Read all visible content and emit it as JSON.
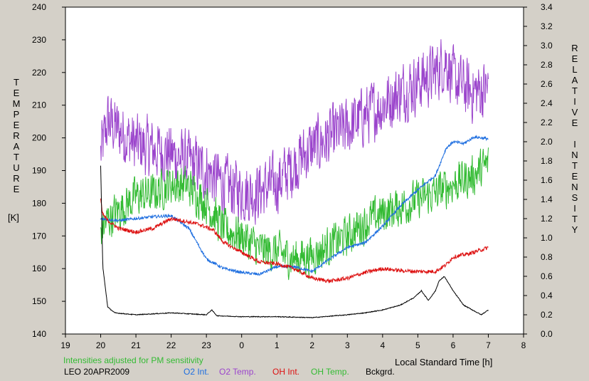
{
  "chart_data": {
    "type": "line",
    "xlabel": "Local Standard Time [h]",
    "x_ticks": [
      "19",
      "20",
      "21",
      "22",
      "23",
      "0",
      "1",
      "2",
      "3",
      "4",
      "5",
      "6",
      "7",
      "8"
    ],
    "xlim": [
      19,
      32
    ],
    "left_axis": {
      "label_letters": [
        "T",
        "E",
        "M",
        "P",
        "E",
        "R",
        "A",
        "T",
        "U",
        "R",
        "E"
      ],
      "unit": "[K]",
      "ylim": [
        140,
        240
      ],
      "ticks": [
        "140",
        "150",
        "160",
        "170",
        "180",
        "190",
        "200",
        "210",
        "220",
        "230",
        "240"
      ]
    },
    "right_axis": {
      "label_letters": [
        "R",
        "E",
        "L",
        "A",
        "T",
        "I",
        "V",
        "E",
        "",
        "I",
        "N",
        "T",
        "E",
        "N",
        "S",
        "I",
        "T",
        "Y"
      ],
      "ylim": [
        0.0,
        3.4
      ],
      "ticks": [
        "0.0",
        "0.2",
        "0.4",
        "0.6",
        "0.8",
        "1.0",
        "1.2",
        "1.4",
        "1.6",
        "1.8",
        "2.0",
        "2.2",
        "2.4",
        "2.6",
        "2.8",
        "3.0",
        "3.2",
        "3.4"
      ]
    },
    "notes": {
      "adjust": "Intensities adjusted for PM sensitivity",
      "station": "LEO 20APR2009"
    },
    "legend": [
      {
        "name": "O2 Int.",
        "color": "#1f6fe0"
      },
      {
        "name": "O2 Temp.",
        "color": "#9b45cc"
      },
      {
        "name": "OH Int.",
        "color": "#dd1111"
      },
      {
        "name": "OH Temp.",
        "color": "#33bb33"
      },
      {
        "name": "Bckgrd.",
        "color": "#000000"
      }
    ],
    "series": [
      {
        "key": "o2temp",
        "axis": "left",
        "color": "#9b45cc",
        "noise": 12,
        "x": [
          20.0,
          20.2,
          21,
          22,
          23,
          23.6,
          24.3,
          25,
          25.5,
          26,
          26.5,
          27,
          27.5,
          28,
          28.5,
          29,
          29.5,
          29.8,
          30,
          30.5,
          31.0
        ],
        "y": [
          195,
          205,
          198,
          195,
          190,
          185,
          183,
          186,
          192,
          197,
          200,
          203,
          207,
          210,
          214,
          217,
          220,
          224,
          218,
          214,
          215
        ]
      },
      {
        "key": "o2int",
        "axis": "right",
        "color": "#1f6fe0",
        "noise": 0.015,
        "x": [
          20.0,
          20.5,
          21,
          21.5,
          22,
          22.5,
          23,
          23.5,
          24,
          24.5,
          25,
          25.5,
          26,
          26.5,
          27,
          27.5,
          28,
          28.5,
          29,
          29.5,
          29.8,
          30,
          30.3,
          30.6,
          31.0
        ],
        "y": [
          1.2,
          1.18,
          1.2,
          1.22,
          1.23,
          1.1,
          0.78,
          0.68,
          0.64,
          0.62,
          0.7,
          0.7,
          0.65,
          0.78,
          0.9,
          0.95,
          1.12,
          1.33,
          1.5,
          1.65,
          1.93,
          2.0,
          1.98,
          2.05,
          2.03
        ]
      },
      {
        "key": "ohint",
        "axis": "right",
        "color": "#dd1111",
        "noise": 0.02,
        "x": [
          20.0,
          20.05,
          20.2,
          20.5,
          21,
          21.5,
          22,
          22.3,
          22.8,
          23.2,
          23.5,
          24,
          24.5,
          25,
          25.5,
          26,
          26.5,
          27,
          27.5,
          28,
          28.5,
          29,
          29.5,
          29.8,
          30,
          30.5,
          31.0
        ],
        "y": [
          1.4,
          1.25,
          1.18,
          1.1,
          1.06,
          1.1,
          1.2,
          1.18,
          1.14,
          1.08,
          0.95,
          0.85,
          0.75,
          0.73,
          0.68,
          0.58,
          0.55,
          0.58,
          0.64,
          0.68,
          0.66,
          0.65,
          0.65,
          0.72,
          0.8,
          0.84,
          0.9
        ]
      },
      {
        "key": "ohtemp",
        "axis": "left",
        "color": "#33bb33",
        "noise": 8,
        "x": [
          20.0,
          20.3,
          21,
          21.5,
          22,
          22.5,
          23,
          23.5,
          24,
          24.5,
          25,
          25.5,
          26,
          26.5,
          27,
          27.5,
          28,
          28.5,
          29,
          29.5,
          30,
          30.5,
          31.0
        ],
        "y": [
          172,
          176,
          182,
          183,
          186,
          185,
          180,
          172,
          170,
          166,
          165,
          163,
          164,
          167,
          170,
          174,
          177,
          179,
          181,
          183,
          186,
          188,
          192
        ]
      },
      {
        "key": "bkg",
        "axis": "right",
        "color": "#000000",
        "noise": 0.004,
        "x": [
          20.0,
          20.06,
          20.2,
          20.4,
          21,
          22,
          23,
          23.15,
          23.3,
          24,
          25,
          26,
          27,
          27.5,
          28,
          28.5,
          28.9,
          29.1,
          29.3,
          29.5,
          29.6,
          29.75,
          30,
          30.3,
          30.6,
          30.8,
          31.0
        ],
        "y": [
          1.75,
          0.7,
          0.28,
          0.22,
          0.2,
          0.22,
          0.2,
          0.25,
          0.19,
          0.18,
          0.18,
          0.17,
          0.2,
          0.22,
          0.25,
          0.3,
          0.38,
          0.45,
          0.35,
          0.45,
          0.55,
          0.6,
          0.45,
          0.3,
          0.24,
          0.2,
          0.25
        ]
      }
    ]
  }
}
